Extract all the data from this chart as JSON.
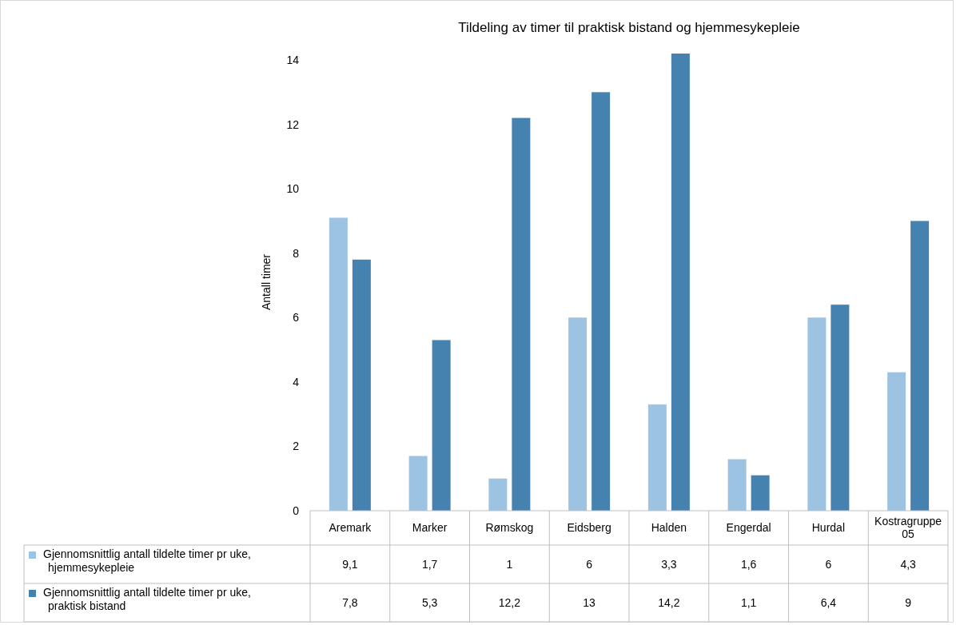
{
  "chart_data": {
    "type": "bar",
    "title": "Tildeling av timer til praktisk bistand og hjemmesykepleie",
    "ylabel": "Antall timer",
    "categories": [
      "Aremark",
      "Marker",
      "Rømskog",
      "Eidsberg",
      "Halden",
      "Engerdal",
      "Hurdal",
      "Kostragruppe 05"
    ],
    "series": [
      {
        "name": "Gjennomsnittlig antall tildelte timer pr uke, hjemmesykepleie",
        "color": "#9dc3e3",
        "values": [
          9.1,
          1.7,
          1,
          6,
          3.3,
          1.6,
          6,
          4.3
        ],
        "value_labels": [
          "9,1",
          "1,7",
          "1",
          "6",
          "3,3",
          "1,6",
          "6",
          "4,3"
        ]
      },
      {
        "name": "Gjennomsnittlig antall tildelte timer pr uke, praktisk bistand",
        "color": "#4682b0",
        "values": [
          7.8,
          5.3,
          12.2,
          13,
          14.2,
          1.1,
          6.4,
          9
        ],
        "value_labels": [
          "7,8",
          "5,3",
          "12,2",
          "13",
          "14,2",
          "1,1",
          "6,4",
          "9"
        ]
      }
    ],
    "ylim": [
      0,
      14.2
    ],
    "yticks": [
      0,
      2,
      4,
      6,
      8,
      10,
      12,
      14
    ],
    "grid": false,
    "legend": "bottom"
  }
}
